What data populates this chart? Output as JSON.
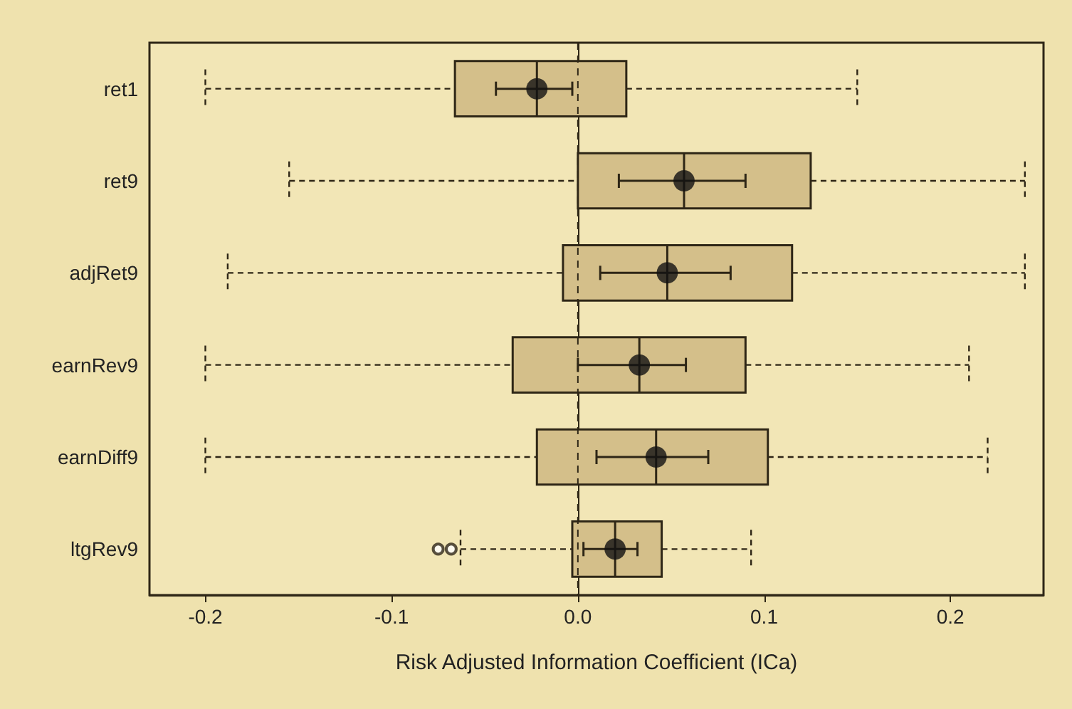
{
  "chart_data": {
    "type": "box",
    "orientation": "horizontal",
    "xlabel": "Risk Adjusted Information Coefficient (ICa)",
    "categories": [
      "ret1",
      "ret9",
      "adjRet9",
      "earnRev9",
      "earnDiff9",
      "ltgRev9"
    ],
    "color": "#d4bf8a",
    "boxes": [
      {
        "low": -0.2,
        "q1": -0.066,
        "median": -0.022,
        "q3": 0.026,
        "high": 0.15
      },
      {
        "low": -0.155,
        "q1": 0.0,
        "median": 0.057,
        "q3": 0.125,
        "high": 0.24
      },
      {
        "low": -0.188,
        "q1": -0.008,
        "median": 0.048,
        "q3": 0.115,
        "high": 0.24
      },
      {
        "low": -0.2,
        "q1": -0.035,
        "median": 0.033,
        "q3": 0.09,
        "high": 0.21
      },
      {
        "low": -0.2,
        "q1": -0.022,
        "median": 0.042,
        "q3": 0.102,
        "high": 0.22
      },
      {
        "low": -0.063,
        "q1": -0.003,
        "median": 0.02,
        "q3": 0.045,
        "high": 0.093,
        "outliers": [
          -0.075,
          -0.068
        ]
      }
    ],
    "series": [
      {
        "type": "scatter",
        "color": "#111111",
        "x": [
          "ret1",
          "ret9",
          "adjRet9",
          "earnRev9",
          "earnDiff9",
          "ltgRev9"
        ],
        "values": [
          -0.022,
          0.057,
          0.048,
          0.033,
          0.042,
          0.02
        ],
        "errors": [
          [
            -0.044,
            -0.003
          ],
          [
            0.022,
            0.09
          ],
          [
            0.012,
            0.082
          ],
          [
            0.0,
            0.058
          ],
          [
            0.01,
            0.07
          ],
          [
            0.003,
            0.032
          ]
        ]
      }
    ],
    "xlim": [
      -0.23,
      0.25
    ],
    "xticks": [
      {
        "value": -0.2,
        "label": "-0.2"
      },
      {
        "value": -0.1,
        "label": "-0.1"
      },
      {
        "value": 0,
        "label": "0.0"
      },
      {
        "value": 0.1,
        "label": "0.1"
      },
      {
        "value": 0.2,
        "label": "0.2"
      }
    ],
    "ref_lines": [
      {
        "axis": "x",
        "value": 0,
        "line_style": "dashed"
      }
    ],
    "line_style": "dashed",
    "marker": "circle"
  }
}
